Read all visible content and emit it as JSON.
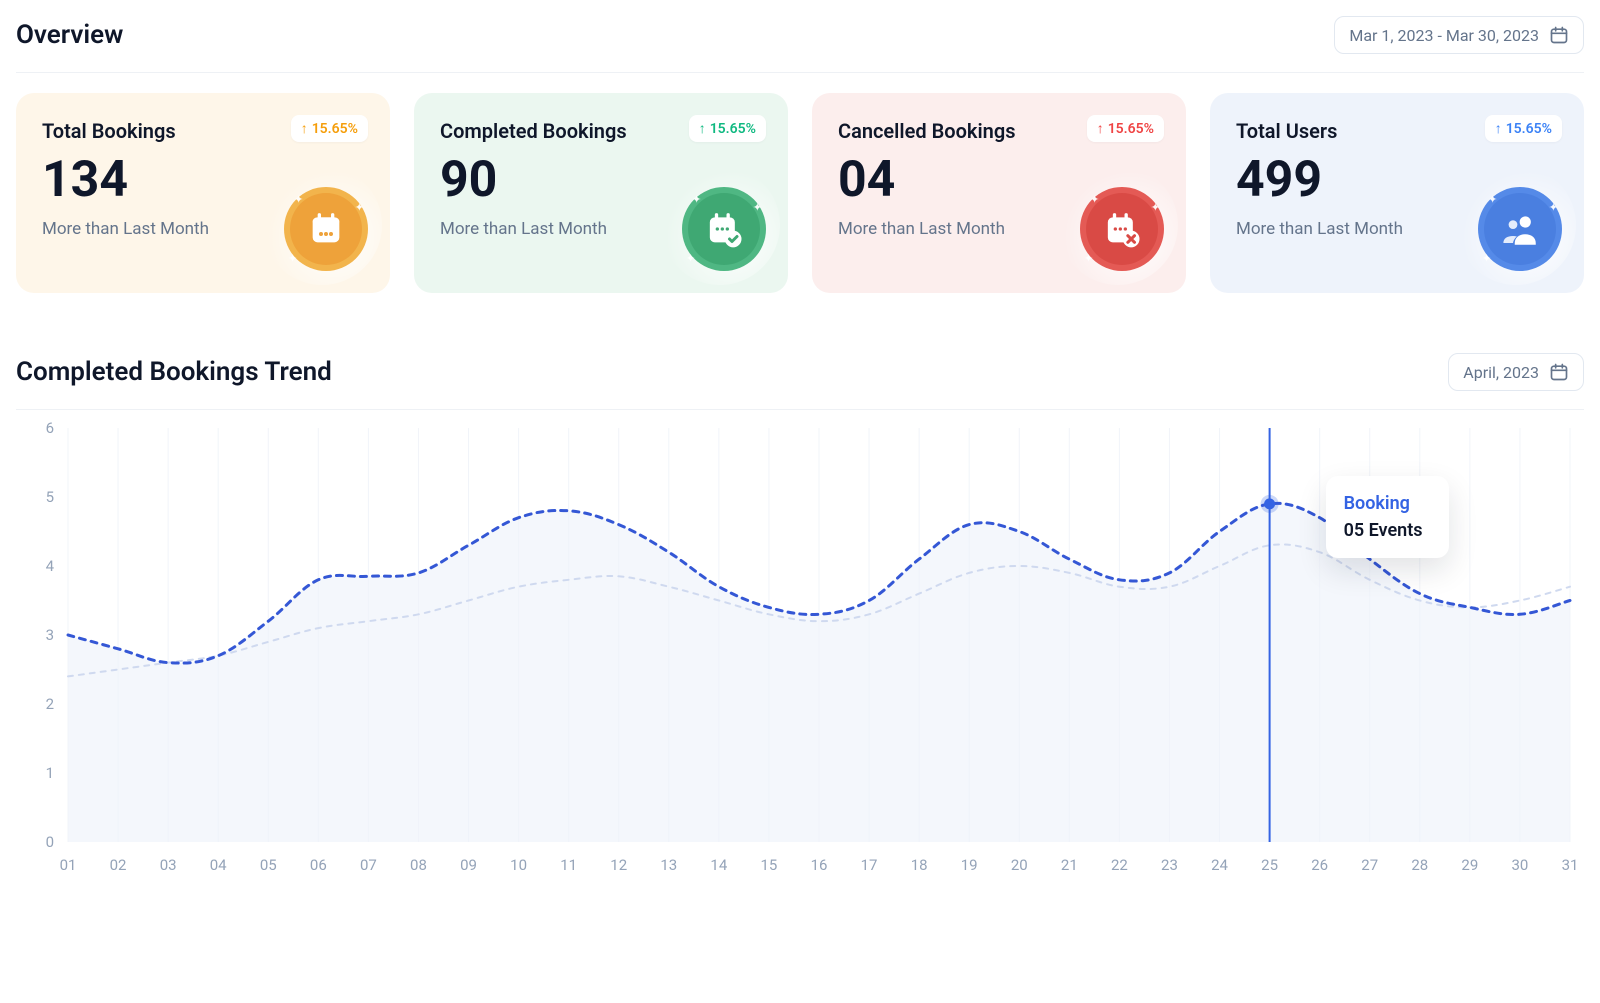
{
  "overview": {
    "title": "Overview",
    "date_range_label": "Mar 1, 2023 - Mar 30, 2023"
  },
  "cards": [
    {
      "title": "Total Bookings",
      "value": "134",
      "subtitle": "More than Last Month",
      "delta": "15.65%",
      "delta_direction": "up",
      "delta_color": "#f59e0b",
      "bg_color": "#fef6e9",
      "icon_ring": "#f2b44c",
      "icon_disc": "#eea23a",
      "icon_kind": "calendar"
    },
    {
      "title": "Completed Bookings",
      "value": "90",
      "subtitle": "More than Last Month",
      "delta": "15.65%",
      "delta_direction": "up",
      "delta_color": "#10b981",
      "bg_color": "#ebf7f0",
      "icon_ring": "#4fb783",
      "icon_disc": "#3fa873",
      "icon_kind": "calendar-check"
    },
    {
      "title": "Cancelled Bookings",
      "value": "04",
      "subtitle": "More than Last Month",
      "delta": "15.65%",
      "delta_direction": "up",
      "delta_color": "#ef4444",
      "bg_color": "#fceeed",
      "icon_ring": "#e45a55",
      "icon_disc": "#d94a45",
      "icon_kind": "calendar-x"
    },
    {
      "title": "Total Users",
      "value": "499",
      "subtitle": "More than Last Month",
      "delta": "15.65%",
      "delta_direction": "up",
      "delta_color": "#3b82f6",
      "bg_color": "#eef3fb",
      "icon_ring": "#558ae8",
      "icon_disc": "#4a7fe0",
      "icon_kind": "users"
    }
  ],
  "trend": {
    "title": "Completed Bookings Trend",
    "period_label": "April, 2023",
    "chart": {
      "type": "line",
      "x_labels": [
        "01",
        "02",
        "03",
        "04",
        "05",
        "06",
        "07",
        "08",
        "09",
        "10",
        "11",
        "12",
        "13",
        "14",
        "15",
        "16",
        "17",
        "18",
        "19",
        "20",
        "21",
        "22",
        "23",
        "24",
        "25",
        "26",
        "27",
        "28",
        "29",
        "30",
        "31"
      ],
      "y_ticks": [
        0,
        1,
        2,
        3,
        4,
        5,
        6
      ],
      "ylim": [
        0,
        6
      ],
      "series_primary": {
        "color": "#3457d5",
        "dash": "6 6",
        "stroke_width": 3,
        "fill": "#eef3fb",
        "fill_opacity": 0.65,
        "values": [
          3.0,
          2.8,
          2.6,
          2.7,
          3.2,
          3.8,
          3.85,
          3.9,
          4.3,
          4.7,
          4.8,
          4.6,
          4.2,
          3.7,
          3.4,
          3.3,
          3.5,
          4.1,
          4.6,
          4.5,
          4.1,
          3.8,
          3.9,
          4.5,
          4.9,
          4.7,
          4.1,
          3.6,
          3.4,
          3.3,
          3.5
        ]
      },
      "series_secondary": {
        "color": "#cfd9ef",
        "dash": "5 6",
        "stroke_width": 2,
        "values": [
          2.4,
          2.5,
          2.6,
          2.7,
          2.9,
          3.1,
          3.2,
          3.3,
          3.5,
          3.7,
          3.8,
          3.85,
          3.7,
          3.5,
          3.3,
          3.2,
          3.3,
          3.6,
          3.9,
          4.0,
          3.9,
          3.7,
          3.7,
          4.0,
          4.3,
          4.2,
          3.8,
          3.5,
          3.4,
          3.5,
          3.7
        ]
      },
      "grid_color": "#f1f4f9",
      "axis_text_color": "#94a3b8",
      "axis_font_size": 15,
      "highlight_x_index": 24,
      "highlight_color": "#3463e3",
      "tooltip": {
        "title": "Booking",
        "subtitle": "05 Events"
      }
    }
  }
}
